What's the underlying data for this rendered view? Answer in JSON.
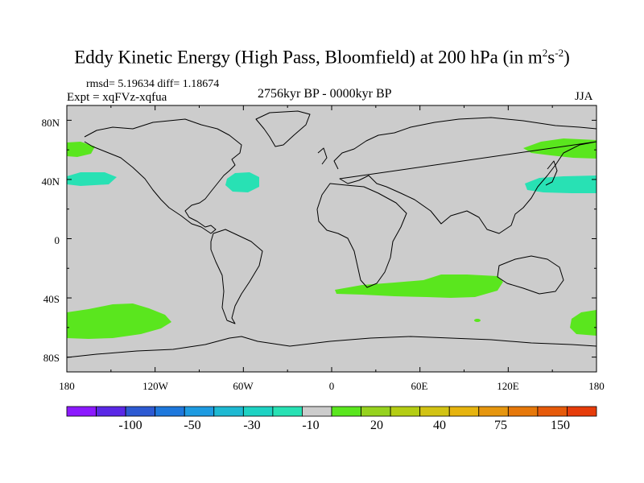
{
  "title": {
    "main": "Eddy Kinetic Energy (High Pass, Bloomfield) at 200 hPa (in m",
    "sup1": "2",
    "mid": "s",
    "sup2": "-2",
    "end": ")"
  },
  "stats": "rmsd= 5.19634 diff= 1.18674",
  "expt": "Expt = xqFVz-xqfua",
  "period": "2756kyr BP - 0000kyr BP",
  "season": "JJA",
  "y_axis": [
    "80N",
    "40N",
    "0",
    "40S",
    "80S"
  ],
  "x_axis": [
    "180",
    "120W",
    "60W",
    "0",
    "60E",
    "120E",
    "180"
  ],
  "colorbar": {
    "colors": [
      "#8c1aff",
      "#5a28e6",
      "#2d5ad2",
      "#1e78dc",
      "#1e9be1",
      "#1eb9d2",
      "#1ed2c3",
      "#28e1b4",
      "#cccccc",
      "#5ae61e",
      "#96d21e",
      "#b4cd14",
      "#d2c314",
      "#e6b40f",
      "#e6960f",
      "#e6780a",
      "#e65a0a",
      "#e63c0a"
    ],
    "labels": [
      "-100",
      "-50",
      "-30",
      "-10",
      "20",
      "40",
      "75",
      "150"
    ]
  },
  "colors": {
    "background": "#cccccc",
    "positive": "#5ae61e",
    "negative": "#28e1b4"
  }
}
